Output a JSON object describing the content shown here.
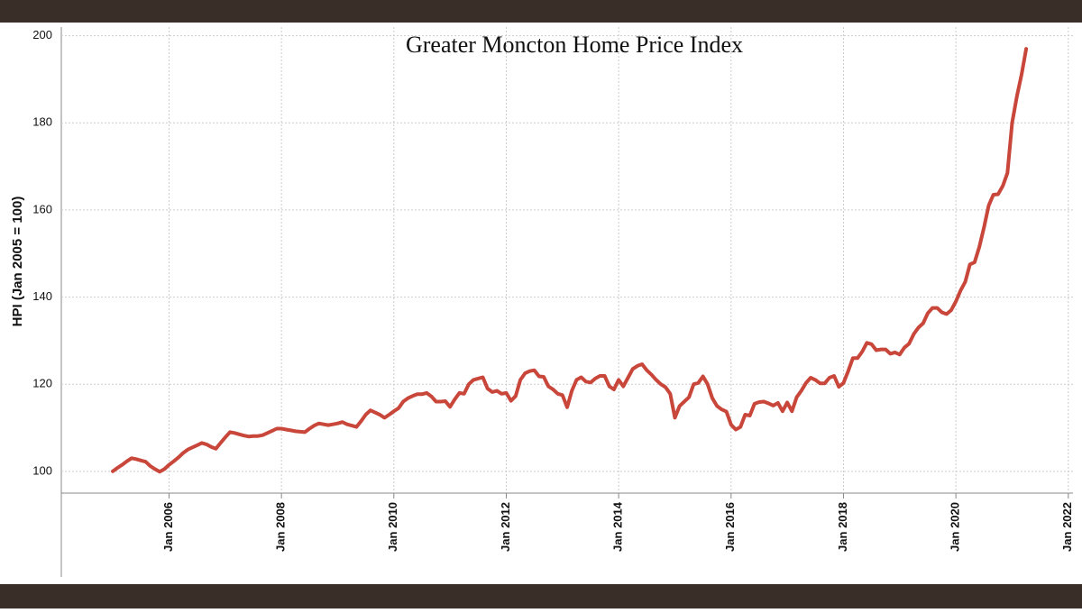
{
  "chart_data": {
    "type": "line",
    "title": "Greater Moncton Home Price Index",
    "y_label": "HPI (Jan 2005 = 100)",
    "color": "#c8463a",
    "grid": true,
    "x": [
      "2005-01",
      "2005-02",
      "2005-03",
      "2005-04",
      "2005-05",
      "2005-06",
      "2005-07",
      "2005-08",
      "2005-09",
      "2005-10",
      "2005-11",
      "2005-12",
      "2006-01",
      "2006-02",
      "2006-03",
      "2006-04",
      "2006-05",
      "2006-06",
      "2006-07",
      "2006-08",
      "2006-09",
      "2006-10",
      "2006-11",
      "2006-12",
      "2007-01",
      "2007-02",
      "2007-03",
      "2007-04",
      "2007-05",
      "2007-06",
      "2007-07",
      "2007-08",
      "2007-09",
      "2007-10",
      "2007-11",
      "2007-12",
      "2008-01",
      "2008-02",
      "2008-03",
      "2008-04",
      "2008-05",
      "2008-06",
      "2008-07",
      "2008-08",
      "2008-09",
      "2008-10",
      "2008-11",
      "2008-12",
      "2009-01",
      "2009-02",
      "2009-03",
      "2009-04",
      "2009-05",
      "2009-06",
      "2009-07",
      "2009-08",
      "2009-09",
      "2009-10",
      "2009-11",
      "2009-12",
      "2010-01",
      "2010-02",
      "2010-03",
      "2010-04",
      "2010-05",
      "2010-06",
      "2010-07",
      "2010-08",
      "2010-09",
      "2010-10",
      "2010-11",
      "2010-12",
      "2011-01",
      "2011-02",
      "2011-03",
      "2011-04",
      "2011-05",
      "2011-06",
      "2011-07",
      "2011-08",
      "2011-09",
      "2011-10",
      "2011-11",
      "2011-12",
      "2012-01",
      "2012-02",
      "2012-03",
      "2012-04",
      "2012-05",
      "2012-06",
      "2012-07",
      "2012-08",
      "2012-09",
      "2012-10",
      "2012-11",
      "2012-12",
      "2013-01",
      "2013-02",
      "2013-03",
      "2013-04",
      "2013-05",
      "2013-06",
      "2013-07",
      "2013-08",
      "2013-09",
      "2013-10",
      "2013-11",
      "2013-12",
      "2014-01",
      "2014-02",
      "2014-03",
      "2014-04",
      "2014-05",
      "2014-06",
      "2014-07",
      "2014-08",
      "2014-09",
      "2014-10",
      "2014-11",
      "2014-12",
      "2015-01",
      "2015-02",
      "2015-03",
      "2015-04",
      "2015-05",
      "2015-06",
      "2015-07",
      "2015-08",
      "2015-09",
      "2015-10",
      "2015-11",
      "2015-12",
      "2016-01",
      "2016-02",
      "2016-03",
      "2016-04",
      "2016-05",
      "2016-06",
      "2016-07",
      "2016-08",
      "2016-09",
      "2016-10",
      "2016-11",
      "2016-12",
      "2017-01",
      "2017-02",
      "2017-03",
      "2017-04",
      "2017-05",
      "2017-06",
      "2017-07",
      "2017-08",
      "2017-09",
      "2017-10",
      "2017-11",
      "2017-12",
      "2018-01",
      "2018-02",
      "2018-03",
      "2018-04",
      "2018-05",
      "2018-06",
      "2018-07",
      "2018-08",
      "2018-09",
      "2018-10",
      "2018-11",
      "2018-12",
      "2019-01",
      "2019-02",
      "2019-03",
      "2019-04",
      "2019-05",
      "2019-06",
      "2019-07",
      "2019-08",
      "2019-09",
      "2019-10",
      "2019-11",
      "2019-12",
      "2020-01",
      "2020-02",
      "2020-03",
      "2020-04",
      "2020-05",
      "2020-06",
      "2020-07",
      "2020-08",
      "2020-09",
      "2020-10",
      "2020-11",
      "2020-12",
      "2021-01",
      "2021-02",
      "2021-03",
      "2021-04"
    ],
    "values": [
      100,
      100.8,
      101.5,
      102.3,
      103,
      102.8,
      102.5,
      102.2,
      101.2,
      100.5,
      99.9,
      100.5,
      101.5,
      102.3,
      103.2,
      104.2,
      105,
      105.5,
      106,
      106.5,
      106.2,
      105.6,
      105.2,
      106.5,
      107.8,
      109,
      108.8,
      108.5,
      108.2,
      108,
      108.1,
      108.1,
      108.3,
      108.8,
      109.3,
      109.8,
      109.8,
      109.6,
      109.4,
      109.2,
      109.1,
      109,
      109.8,
      110.5,
      111,
      110.8,
      110.6,
      110.8,
      111,
      111.3,
      110.8,
      110.5,
      110.2,
      111.5,
      113,
      114,
      113.5,
      113,
      112.3,
      113,
      113.8,
      114.5,
      116,
      116.8,
      117.3,
      117.7,
      117.7,
      118,
      117.2,
      116,
      116,
      116.1,
      114.8,
      116.5,
      118,
      117.8,
      120,
      121,
      121.3,
      121.6,
      119,
      118.2,
      118.5,
      117.8,
      118,
      116.2,
      117.3,
      121,
      122.5,
      123,
      123.2,
      121.8,
      121.7,
      119.5,
      118.8,
      117.8,
      117.5,
      114.7,
      118.5,
      121,
      121.6,
      120.6,
      120.4,
      121.3,
      121.9,
      121.9,
      119.5,
      118.8,
      121,
      119.5,
      121.5,
      123.5,
      124.2,
      124.6,
      123.2,
      122.2,
      121,
      120,
      119.3,
      117.8,
      112.3,
      115,
      116,
      117,
      120,
      120.3,
      121.8,
      120,
      116.8,
      115,
      114.2,
      113.7,
      110.7,
      109.6,
      110.2,
      113,
      112.8,
      115.5,
      115.9,
      116,
      115.6,
      115.1,
      115.7,
      113.8,
      115.8,
      113.8,
      117,
      118.5,
      120.3,
      121.5,
      121,
      120.2,
      120.2,
      121.5,
      121.9,
      119.4,
      120.3,
      123,
      126,
      126,
      127.5,
      129.5,
      129.2,
      127.8,
      128,
      128,
      127,
      127.3,
      126.8,
      128.4,
      129.3,
      131.5,
      133,
      134,
      136.3,
      137.5,
      137.5,
      136.5,
      136.1,
      137,
      139,
      141.5,
      143.5,
      147.5,
      148,
      151.5,
      156,
      161,
      163.5,
      163.6,
      165.5,
      168.5,
      180,
      186,
      191,
      197
    ],
    "xlim": [
      "2004-02",
      "2022-02"
    ],
    "ylim": [
      95,
      202
    ],
    "xticks": [
      {
        "value": "2006-01",
        "label": "Jan 2006"
      },
      {
        "value": "2008-01",
        "label": "Jan 2008"
      },
      {
        "value": "2010-01",
        "label": "Jan 2010"
      },
      {
        "value": "2012-01",
        "label": "Jan 2012"
      },
      {
        "value": "2014-01",
        "label": "Jan 2014"
      },
      {
        "value": "2016-01",
        "label": "Jan 2016"
      },
      {
        "value": "2018-01",
        "label": "Jan 2018"
      },
      {
        "value": "2020-01",
        "label": "Jan 2020"
      },
      {
        "value": "2022-01",
        "label": "Jan 2022"
      }
    ],
    "yticks": [
      100,
      120,
      140,
      160,
      180,
      200
    ]
  }
}
